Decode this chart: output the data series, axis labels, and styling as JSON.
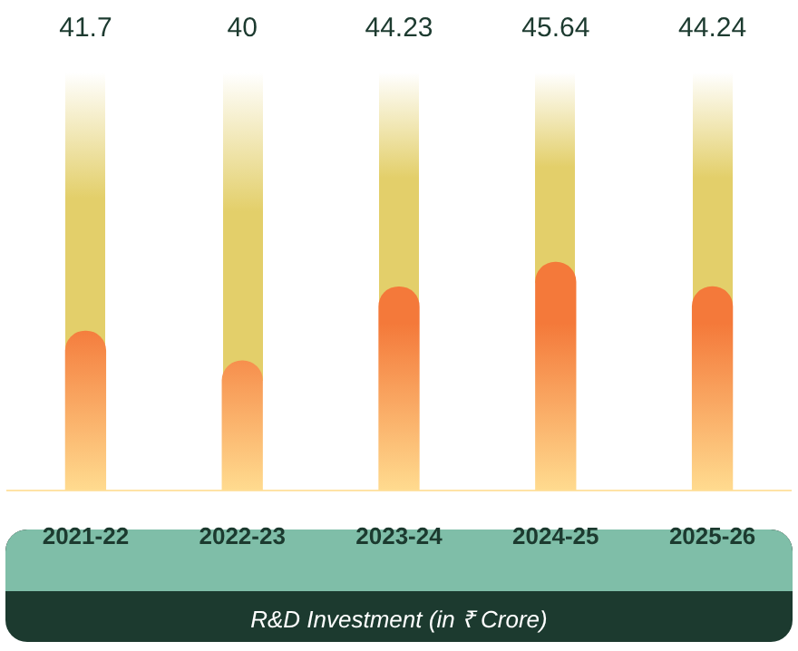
{
  "chart_data": {
    "type": "bar",
    "xlabel": "R&D Investment (in ₹ Crore)",
    "categories": [
      "2021-22",
      "2022-23",
      "2023-24",
      "2024-25",
      "2025-26"
    ],
    "values": [
      41.7,
      40,
      44.23,
      45.64,
      44.24
    ],
    "color": "#f4793a",
    "ylim": [
      32.6,
      56.5
    ],
    "data_labels": true,
    "grid": false,
    "legend": false,
    "tick_labels": "x"
  }
}
